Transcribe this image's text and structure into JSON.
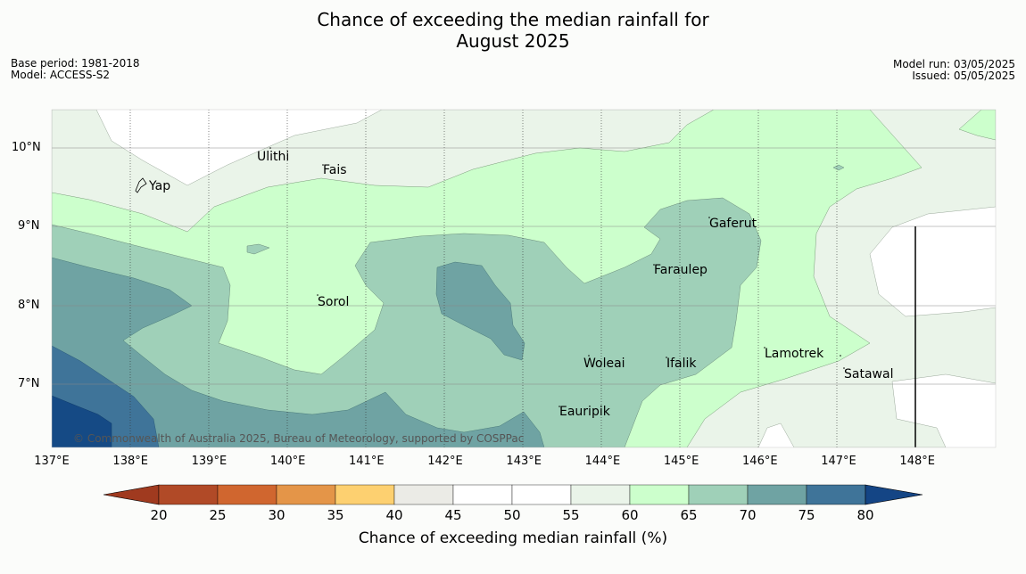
{
  "title_line1": "Chance of exceeding the median rainfall for",
  "title_line2": "August 2025",
  "meta_left": {
    "base_period": "Base period: 1981-2018",
    "model": "Model: ACCESS-S2"
  },
  "meta_right": {
    "model_run": "Model run: 03/05/2025",
    "issued": "Issued: 05/05/2025"
  },
  "copyright": "© Commonwealth of Australia 2025, Bureau of Meteorology, supported by COSPPac",
  "lat_labels": [
    "10°N",
    "9°N",
    "8°N",
    "7°N"
  ],
  "lon_labels": [
    "137°E",
    "138°E",
    "139°E",
    "140°E",
    "141°E",
    "142°E",
    "143°E",
    "144°E",
    "145°E",
    "146°E",
    "147°E",
    "148°E"
  ],
  "places": [
    "Ulithi",
    "Fais",
    "Yap",
    "Gaferut",
    "Faraulep",
    "Sorol",
    "Lamotrek",
    "Woleai",
    "Ifalik",
    "Satawal",
    "Eauripik"
  ],
  "colorbar": {
    "title": "Chance of exceeding median rainfall (%)",
    "ticks": [
      "20",
      "25",
      "30",
      "35",
      "40",
      "45",
      "50",
      "55",
      "60",
      "65",
      "70",
      "75",
      "80"
    ],
    "colors": [
      "#b14a27",
      "#d0662f",
      "#e49548",
      "#fdd070",
      "#ebebe6",
      "#ffffff",
      "#ffffff",
      "#eaf4e9",
      "#ccffcc",
      "#9fd0b8",
      "#6fa3a3",
      "#3f7499",
      "#154a85"
    ],
    "below_color": "#a03a1f",
    "above_color": "#144585"
  }
}
